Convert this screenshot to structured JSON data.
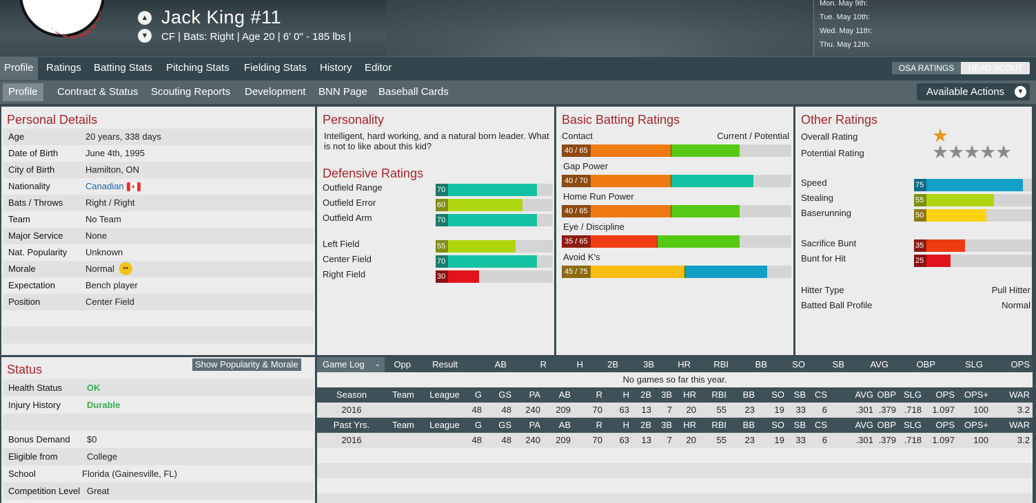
{
  "header": {
    "player_name": "Jack King  #11",
    "subtitle": "CF | Bats: Right  |  Age 20  |  6' 0\" - 185 lbs  |",
    "calendar": [
      "Mon. May 9th:",
      "Tue. May 10th:",
      "Wed. May 11th:",
      "Thu. May 12th:"
    ]
  },
  "nav1": {
    "tabs": [
      "Profile",
      "Ratings",
      "Batting Stats",
      "Pitching Stats",
      "Fielding Stats",
      "History",
      "Editor"
    ],
    "toggle": [
      "OSA RATINGS",
      "HEAD SCOUT"
    ]
  },
  "nav2": {
    "tabs": [
      "Profile",
      "Contract & Status",
      "Scouting Reports",
      "Development",
      "BNN Page",
      "Baseball Cards"
    ],
    "actions": "Available Actions"
  },
  "personal": {
    "title": "Personal Details",
    "rows": [
      {
        "label": "Age",
        "value": "20 years, 338 days"
      },
      {
        "label": "Date of Birth",
        "value": "June 4th, 1995"
      },
      {
        "label": "City of Birth",
        "value": "Hamilton, ON"
      },
      {
        "label": "Nationality",
        "value": "Canadian"
      },
      {
        "label": "Bats / Throws",
        "value": "Right / Right"
      },
      {
        "label": "Team",
        "value": "No Team"
      },
      {
        "label": "Major Service",
        "value": "None"
      },
      {
        "label": "Nat. Popularity",
        "value": "Unknown"
      },
      {
        "label": "Morale",
        "value": "Normal"
      },
      {
        "label": "Expectation",
        "value": "Bench player"
      },
      {
        "label": "Position",
        "value": "Center Field"
      }
    ]
  },
  "personality": {
    "title": "Personality",
    "text": "Intelligent, hard working, and a natural born leader. What is not to like about this kid?"
  },
  "defense": {
    "title": "Defensive Ratings",
    "ratings": [
      {
        "label": "Outfield Range",
        "value": 70,
        "color": "#14c2a3",
        "tag": "#1a7a6c"
      },
      {
        "label": "Outfield Error",
        "value": 60,
        "color": "#aed60e",
        "tag": "#7f8f12"
      },
      {
        "label": "Outfield Arm",
        "value": 70,
        "color": "#14c2a3",
        "tag": "#1a7a6c"
      },
      {
        "label": "Left Field",
        "value": 55,
        "color": "#aed60e",
        "tag": "#7f8f12"
      },
      {
        "label": "Center Field",
        "value": 70,
        "color": "#14c2a3",
        "tag": "#1a7a6c"
      },
      {
        "label": "Right Field",
        "value": 30,
        "color": "#e0141a",
        "tag": "#8e1014"
      }
    ]
  },
  "batting": {
    "title": "Basic Batting Ratings",
    "legend": "Current / Potential",
    "ratings": [
      {
        "label": "Contact",
        "current": 40,
        "potential": 65,
        "tag": "40 / 65",
        "c_color": "#f07a12",
        "p_color": "#55c913",
        "tag_color": "#8d4a12"
      },
      {
        "label": "Gap Power",
        "current": 40,
        "potential": 70,
        "tag": "40 / 70",
        "c_color": "#f07a12",
        "p_color": "#14c2a3",
        "tag_color": "#8d4a12"
      },
      {
        "label": "Home Run Power",
        "current": 40,
        "potential": 65,
        "tag": "40 / 65",
        "c_color": "#f07a12",
        "p_color": "#55c913",
        "tag_color": "#8d4a12"
      },
      {
        "label": "Eye / Discipline",
        "current": 35,
        "potential": 65,
        "tag": "35 / 65",
        "c_color": "#f03c12",
        "p_color": "#55c913",
        "tag_color": "#8e1c12"
      },
      {
        "label": "Avoid K's",
        "current": 45,
        "potential": 75,
        "tag": "45 / 75",
        "c_color": "#f8bd10",
        "p_color": "#12a0c8",
        "tag_color": "#8e6a10"
      }
    ]
  },
  "other": {
    "title": "Other Ratings",
    "overall_label": "Overall Rating",
    "potential_label": "Potential Rating",
    "overall_stars": 1,
    "potential_stars": 5,
    "ratings": [
      {
        "label": "Speed",
        "value": 75,
        "color": "#12a0c8",
        "tag": "#0e6a8a"
      },
      {
        "label": "Stealing",
        "value": 55,
        "color": "#aed60e",
        "tag": "#7f8f12"
      },
      {
        "label": "Baserunning",
        "value": 50,
        "color": "#f8d510",
        "tag": "#8e7a10"
      },
      {
        "label": "Sacrifice Bunt",
        "value": 35,
        "color": "#f03c12",
        "tag": "#8e1c12"
      },
      {
        "label": "Bunt for Hit",
        "value": 25,
        "color": "#e0141a",
        "tag": "#8e1014"
      }
    ],
    "hitter_type_label": "Hitter Type",
    "hitter_type": "Pull Hitter",
    "batted_ball_label": "Batted Ball Profile",
    "batted_ball": "Normal"
  },
  "status": {
    "title": "Status",
    "button": "Show Popularity & Morale",
    "rows": [
      {
        "label": "Health Status",
        "value": "OK"
      },
      {
        "label": "Injury History",
        "value": "Durable"
      },
      {
        "label": "Bonus Demand",
        "value": "$0"
      },
      {
        "label": "Eligible from",
        "value": "College"
      },
      {
        "label": "School",
        "value": "Florida (Gainesville, FL)"
      },
      {
        "label": "Competition Level",
        "value": "Great"
      }
    ]
  },
  "gamelog": {
    "select": "Game Log",
    "headers": [
      "Opp",
      "Result",
      "AB",
      "R",
      "H",
      "2B",
      "3B",
      "HR",
      "RBI",
      "BB",
      "SO",
      "SB",
      "AVG",
      "OBP",
      "SLG",
      "OPS"
    ],
    "empty": "No games so far this year."
  },
  "season": {
    "headers": [
      "Season",
      "Team",
      "League",
      "G",
      "GS",
      "PA",
      "AB",
      "R",
      "H",
      "2B",
      "3B",
      "HR",
      "RBI",
      "BB",
      "SO",
      "SB",
      "CS",
      "AVG",
      "OBP",
      "SLG",
      "OPS",
      "OPS+",
      "WAR"
    ],
    "row": [
      "2016",
      "",
      "",
      "48",
      "48",
      "240",
      "209",
      "70",
      "63",
      "13",
      "7",
      "20",
      "55",
      "23",
      "19",
      "33",
      "6",
      ".301",
      ".379",
      ".718",
      "1.097",
      "100",
      "3.2"
    ]
  },
  "past": {
    "headers": [
      "Past Yrs.",
      "Team",
      "League",
      "G",
      "GS",
      "PA",
      "AB",
      "R",
      "H",
      "2B",
      "3B",
      "HR",
      "RBI",
      "BB",
      "SO",
      "SB",
      "CS",
      "AVG",
      "OBP",
      "SLG",
      "OPS",
      "OPS+",
      "WAR"
    ],
    "row": [
      "2016",
      "",
      "",
      "48",
      "48",
      "240",
      "209",
      "70",
      "63",
      "13",
      "7",
      "20",
      "55",
      "23",
      "19",
      "33",
      "6",
      ".301",
      ".379",
      ".718",
      "1.097",
      "100",
      "3.2"
    ]
  },
  "colors": {
    "accent": "#a3262b",
    "ok": "#3aae4a",
    "link": "#1f64a8"
  }
}
